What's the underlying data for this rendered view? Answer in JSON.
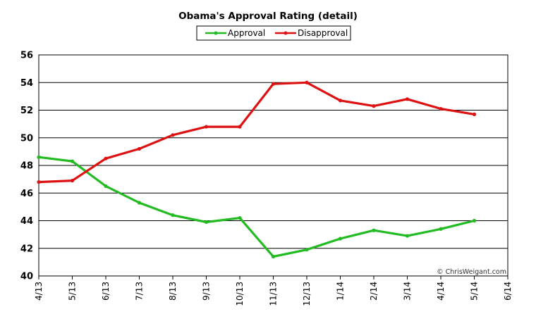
{
  "colors": {
    "approval": "#22bb22",
    "disapproval": "#dd1111",
    "grid": "#000000",
    "background": "#ffffff"
  },
  "credit": "© ChrisWeigant.com",
  "chart_data": {
    "type": "line",
    "title": "Obama's Approval Rating (detail)",
    "xlabel": "",
    "ylabel": "",
    "categories": [
      "4/13",
      "5/13",
      "6/13",
      "7/13",
      "8/13",
      "9/13",
      "10/13",
      "11/13",
      "12/13",
      "1/14",
      "2/14",
      "3/14",
      "4/14",
      "5/14",
      "6/14"
    ],
    "ylim": [
      40,
      56
    ],
    "yticks": [
      40,
      42,
      44,
      46,
      48,
      50,
      52,
      54,
      56
    ],
    "grid": true,
    "legend_position": "top-center",
    "series": [
      {
        "name": "Approval",
        "color": "#22bb22",
        "values": [
          48.6,
          48.3,
          46.5,
          45.3,
          44.4,
          43.9,
          44.2,
          41.4,
          41.9,
          42.7,
          43.3,
          42.9,
          43.4,
          44.0,
          null
        ]
      },
      {
        "name": "Disapproval",
        "color": "#dd1111",
        "values": [
          46.8,
          46.9,
          48.5,
          49.2,
          50.2,
          50.8,
          50.8,
          53.9,
          54.0,
          52.7,
          52.3,
          52.8,
          52.1,
          51.7,
          null
        ]
      }
    ]
  }
}
